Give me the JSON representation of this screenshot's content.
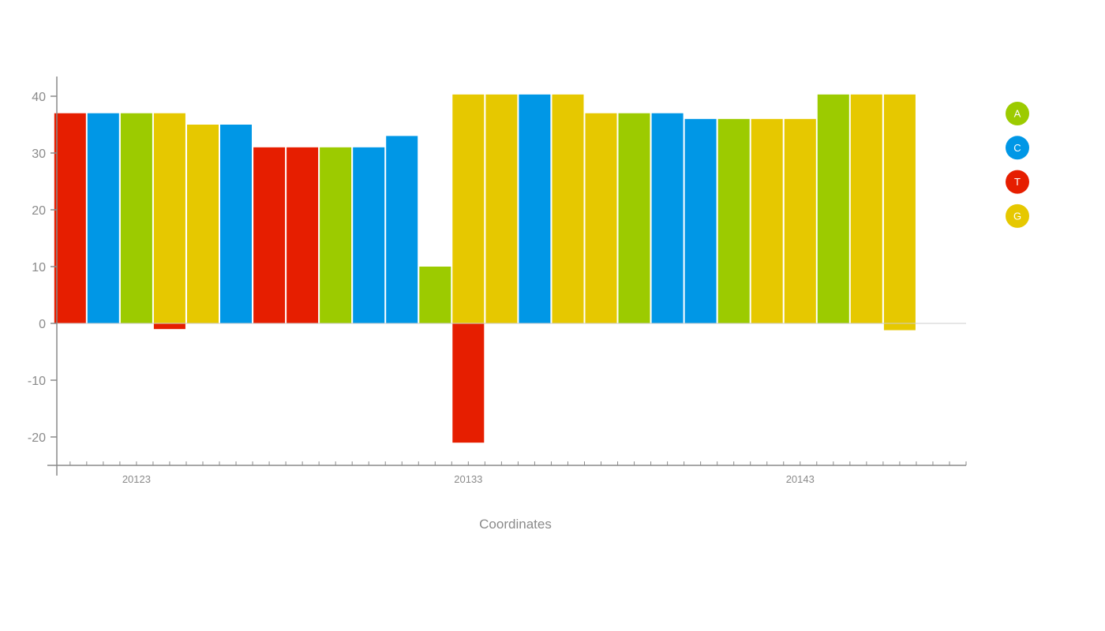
{
  "chart_data": {
    "type": "bar",
    "xlabel": "Coordinates",
    "ylabel": "",
    "ylim": [
      -25,
      43
    ],
    "yticks": [
      -20,
      -10,
      0,
      10,
      20,
      30,
      40
    ],
    "x_tick_labels": [
      {
        "x": 20123,
        "label": "20123"
      },
      {
        "x": 20133,
        "label": "20133"
      },
      {
        "x": 20143,
        "label": "20143"
      }
    ],
    "x_range": [
      20120.6,
      20148.0
    ],
    "x": [
      20121,
      20122,
      20123,
      20124,
      20125,
      20126,
      20127,
      20128,
      20129,
      20130,
      20131,
      20132,
      20133,
      20134,
      20135,
      20136,
      20137,
      20138,
      20139,
      20140,
      20141,
      20142,
      20143,
      20144,
      20145,
      20146,
      20147
    ],
    "positive_colors": [
      "T",
      "C",
      "A",
      "G",
      "G",
      "C",
      "T",
      "T",
      "A",
      "C",
      "C",
      "A",
      "G",
      "G",
      "C",
      "G",
      "G",
      "A",
      "C",
      "C",
      "A",
      "G",
      "G",
      "A",
      "G",
      "G",
      "G"
    ],
    "positive_values": [
      37,
      37,
      37,
      37,
      35,
      35,
      31,
      31,
      31,
      31,
      33,
      10,
      40.3,
      40.3,
      40.3,
      40.3,
      37,
      37,
      37,
      36,
      36,
      36,
      36,
      40.3,
      40.3,
      40.3,
      null
    ],
    "negatives": [
      {
        "x": 20124,
        "base": "T",
        "value": -1
      },
      {
        "x": 20133,
        "base": "T",
        "value": -21
      },
      {
        "x": 20146,
        "base": "G",
        "value": -1.2
      }
    ],
    "legend": [
      {
        "base": "A",
        "label": "A",
        "color": "#9ccb00"
      },
      {
        "base": "C",
        "label": "C",
        "color": "#0097e6"
      },
      {
        "base": "T",
        "label": "T",
        "color": "#e61e00"
      },
      {
        "base": "G",
        "label": "G",
        "color": "#e6c800"
      }
    ],
    "legend_position": "right",
    "grid": false,
    "colors": {
      "A": "#9ccb00",
      "C": "#0097e6",
      "T": "#e61e00",
      "G": "#e6c800",
      "axis": "#8a8a8a",
      "zero_line": "#cccccc"
    }
  }
}
